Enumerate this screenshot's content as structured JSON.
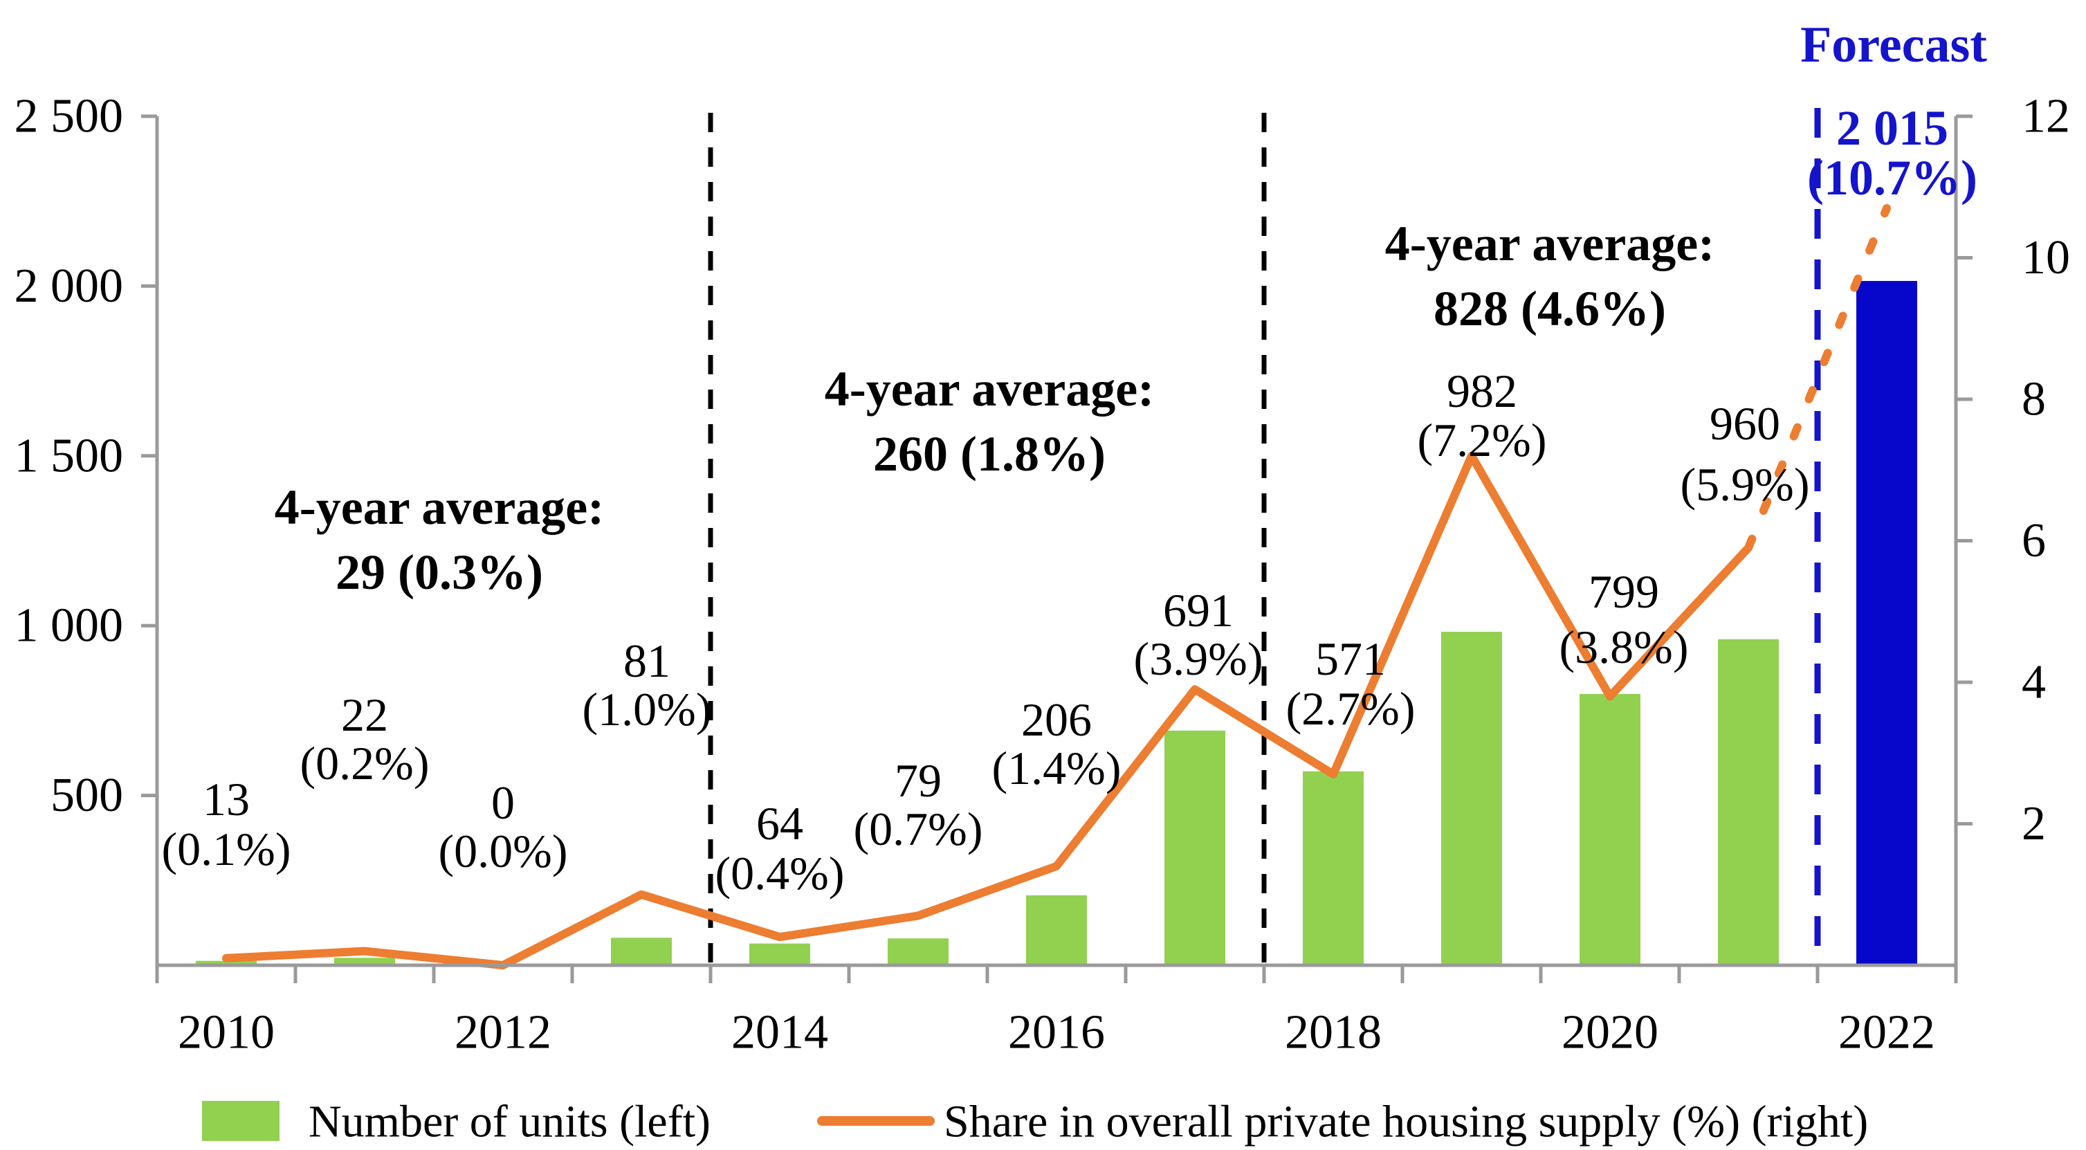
{
  "forecast": {
    "label": "Forecast",
    "bar_label_value": "2 015",
    "bar_label_pct": "(10.7%)"
  },
  "chart_data": {
    "type": "combo_bar_line",
    "categories": [
      "2010",
      "2011",
      "2012",
      "2013",
      "2014",
      "2015",
      "2016",
      "2017",
      "2018",
      "2019",
      "2020",
      "2021",
      "2022"
    ],
    "x_axis_labels_shown": [
      "2010",
      "2012",
      "2014",
      "2016",
      "2018",
      "2020",
      "2022"
    ],
    "series": [
      {
        "name": "Number of units (left)",
        "type": "bar",
        "axis": "left",
        "values": [
          13,
          22,
          0,
          81,
          64,
          79,
          206,
          691,
          571,
          982,
          799,
          960,
          2015
        ]
      },
      {
        "name": "Share in overall private housing supply (%) (right)",
        "type": "line",
        "axis": "right",
        "values": [
          0.1,
          0.2,
          0.0,
          1.0,
          0.4,
          0.7,
          1.4,
          3.9,
          2.7,
          7.2,
          3.8,
          5.9,
          10.7
        ],
        "forecast_dotted_from_index": 11
      }
    ],
    "point_labels": [
      [
        "13",
        "(0.1%)"
      ],
      [
        "22",
        "(0.2%)"
      ],
      [
        "0",
        "(0.0%)"
      ],
      [
        "81",
        "(1.0%)"
      ],
      [
        "64",
        "(0.4%)"
      ],
      [
        "79",
        "(0.7%)"
      ],
      [
        "206",
        "(1.4%)"
      ],
      [
        "691",
        "(3.9%)"
      ],
      [
        "571",
        "(2.7%)"
      ],
      [
        "982",
        "(7.2%)"
      ],
      [
        "799",
        "(3.8%)"
      ],
      [
        "960",
        "(5.9%)"
      ],
      [
        "2 015",
        "(10.7%)"
      ]
    ],
    "left_axis": {
      "min": 0,
      "max": 2500,
      "tick_step": 500,
      "tick_labels": [
        "500",
        "1 000",
        "1 500",
        "2 000",
        "2 500"
      ]
    },
    "right_axis": {
      "min": 0,
      "max": 12,
      "tick_step": 2,
      "tick_labels": [
        "2",
        "4",
        "6",
        "8",
        "10",
        "12"
      ]
    },
    "period_separators_after": [
      "2013",
      "2017"
    ],
    "forecast_separator_after": "2021",
    "annotations": [
      {
        "line1": "4-year average:",
        "line2": "29 (0.3%)"
      },
      {
        "line1": "4-year average:",
        "line2": "260 (1.8%)"
      },
      {
        "line1": "4-year average:",
        "line2": "828 (4.6%)"
      }
    ],
    "legend": [
      {
        "label": "Number of units (left)",
        "swatch": "bar"
      },
      {
        "label": "Share in overall private housing supply (%) (right)",
        "swatch": "line"
      }
    ],
    "colors": {
      "bar_green": "#92D050",
      "bar_blue": "#0707CB",
      "line_orange": "#ED7D31",
      "forecast_blue": "#1414CC",
      "axis_gray": "#9A9A9A",
      "text_black": "#000000"
    },
    "layout_hints": {
      "legend_position": "bottom",
      "grid": false
    }
  }
}
